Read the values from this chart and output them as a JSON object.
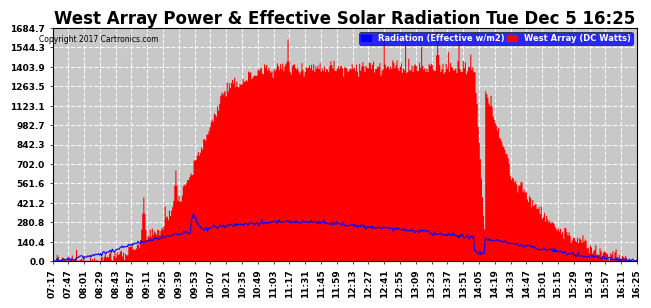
{
  "title": "West Array Power & Effective Solar Radiation Tue Dec 5 16:25",
  "copyright": "Copyright 2017 Cartronics.com",
  "legend_radiation": "Radiation (Effective w/m2)",
  "legend_west_array": "West Array (DC Watts)",
  "bar_color": "#ff0000",
  "line_color": "#0000ff",
  "bg_color": "#ffffff",
  "plot_bg_color": "#c8c8c8",
  "grid_color": "#ffffff",
  "ylim": [
    0.0,
    1684.7
  ],
  "yticks": [
    0.0,
    140.4,
    280.8,
    421.2,
    561.6,
    702.0,
    842.3,
    982.7,
    1123.1,
    1263.5,
    1403.9,
    1544.3,
    1684.7
  ],
  "title_fontsize": 12,
  "tick_fontsize": 6.5,
  "time_labels": [
    "07:17",
    "07:47",
    "08:01",
    "08:29",
    "08:43",
    "08:57",
    "09:11",
    "09:25",
    "09:39",
    "09:53",
    "10:07",
    "10:21",
    "10:35",
    "10:49",
    "11:03",
    "11:17",
    "11:31",
    "11:45",
    "11:59",
    "12:13",
    "12:27",
    "12:41",
    "12:55",
    "13:09",
    "13:23",
    "13:37",
    "13:51",
    "14:05",
    "14:19",
    "14:33",
    "14:47",
    "15:01",
    "15:15",
    "15:29",
    "15:43",
    "15:57",
    "16:11",
    "16:25"
  ],
  "n_labels": 38,
  "n_points": 548
}
